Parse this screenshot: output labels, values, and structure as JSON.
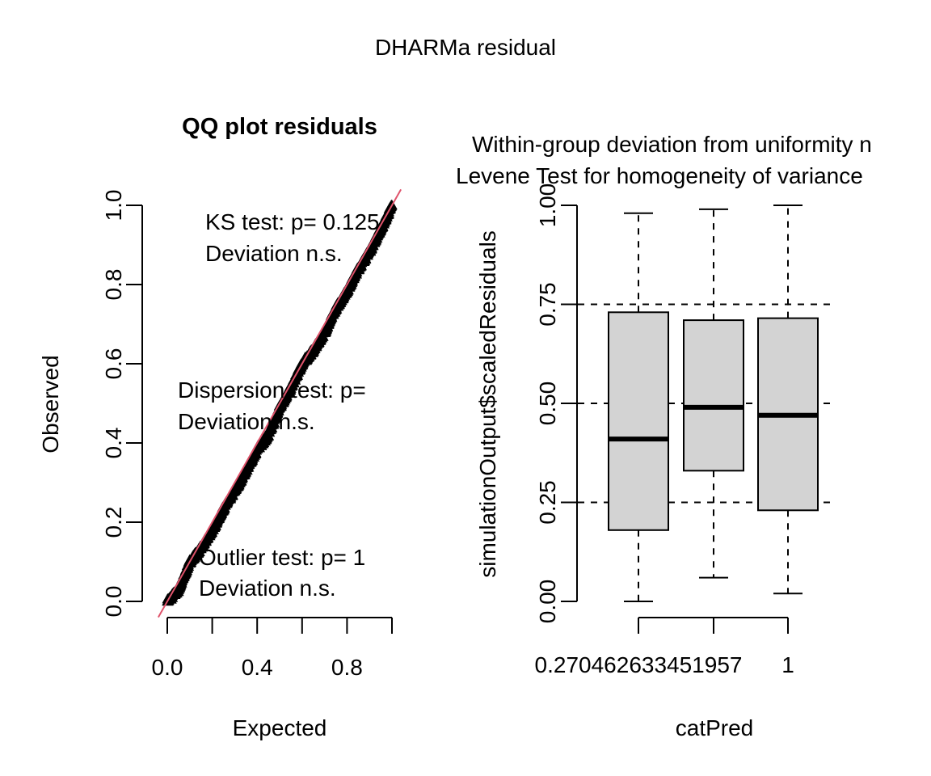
{
  "figure": {
    "title": "DHARMa residual"
  },
  "chart_data": [
    {
      "type": "scatter",
      "title": "QQ plot residuals",
      "xlabel": "Expected",
      "ylabel": "Observed",
      "xlim": [
        0.0,
        1.0
      ],
      "ylim": [
        0.0,
        1.0
      ],
      "x_ticks": [
        "0.0",
        "0.4",
        "0.8"
      ],
      "x_tick_values": [
        0.0,
        0.2,
        0.4,
        0.6,
        0.8,
        1.0
      ],
      "y_ticks": [
        "0.0",
        "0.2",
        "0.4",
        "0.6",
        "0.8",
        "1.0"
      ],
      "y_tick_values": [
        0.0,
        0.2,
        0.4,
        0.6,
        0.8,
        1.0
      ],
      "reference_line": {
        "slope": 1,
        "intercept": 0,
        "color": "#DF536B"
      },
      "qq_deviation": [
        [
          0.0,
          0.0
        ],
        [
          0.05,
          -0.02
        ],
        [
          0.1,
          0.0
        ],
        [
          0.15,
          -0.015
        ],
        [
          0.2,
          -0.02
        ],
        [
          0.25,
          -0.015
        ],
        [
          0.3,
          -0.02
        ],
        [
          0.35,
          -0.02
        ],
        [
          0.4,
          -0.015
        ],
        [
          0.45,
          -0.03
        ],
        [
          0.5,
          -0.01
        ],
        [
          0.55,
          -0.01
        ],
        [
          0.6,
          0.0
        ],
        [
          0.65,
          -0.015
        ],
        [
          0.7,
          -0.02
        ],
        [
          0.75,
          -0.01
        ],
        [
          0.8,
          -0.015
        ],
        [
          0.85,
          -0.01
        ],
        [
          0.9,
          -0.015
        ],
        [
          0.95,
          -0.01
        ],
        [
          1.0,
          0.0
        ]
      ],
      "n_points": 1000,
      "annotations": {
        "ks_line1": "KS test: p= 0.125",
        "ks_line2": "Deviation  n.s.",
        "dispersion_line1": "Dispersion test: p=",
        "dispersion_line2": "Deviation  n.s.",
        "outlier_line1": "Outlier test: p= 1",
        "outlier_line2": "Deviation  n.s."
      }
    },
    {
      "type": "box",
      "title_line1": "Within-group deviation from uniformity n",
      "title_line2": "Levene Test for homogeneity of variance",
      "xlabel": "catPred",
      "ylabel": "simulationOutput$scaledResiduals",
      "ylim": [
        0.0,
        1.0
      ],
      "y_ticks": [
        "0.00",
        "0.25",
        "0.50",
        "0.75",
        "1.00"
      ],
      "y_tick_values": [
        0.0,
        0.25,
        0.5,
        0.75,
        1.0
      ],
      "x_tick_labels": [
        "0.270462633451957",
        "",
        "1"
      ],
      "reference_hlines": [
        0.25,
        0.5,
        0.75
      ],
      "box_color": "#D3D3D3",
      "boxes": [
        {
          "min": 0.0,
          "q1": 0.18,
          "median": 0.41,
          "q3": 0.73,
          "max": 0.98
        },
        {
          "min": 0.06,
          "q1": 0.33,
          "median": 0.49,
          "q3": 0.71,
          "max": 0.99
        },
        {
          "min": 0.02,
          "q1": 0.23,
          "median": 0.47,
          "q3": 0.715,
          "max": 1.0
        }
      ]
    }
  ]
}
